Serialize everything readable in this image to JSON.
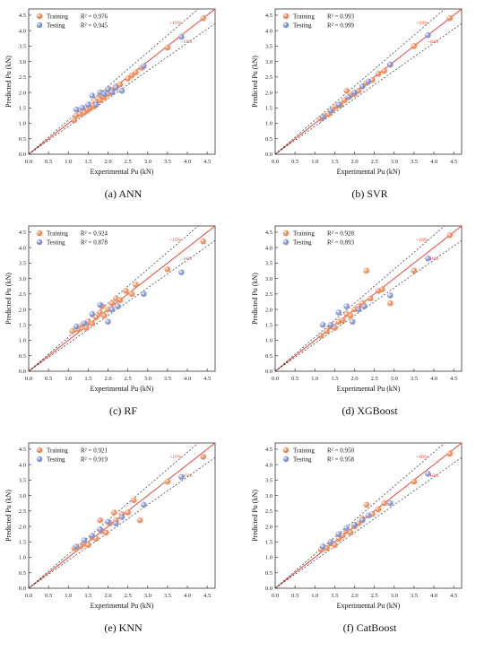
{
  "chart_data": [
    {
      "type": "scatter",
      "caption": "(a) ANN",
      "xlabel": "Experimental Pu (kN)",
      "ylabel": "Predicted Pu (kN)",
      "xlim": [
        0,
        4.7
      ],
      "ylim": [
        0,
        4.7
      ],
      "ticks": [
        0.0,
        0.5,
        1.0,
        1.5,
        2.0,
        2.5,
        3.0,
        3.5,
        4.0,
        4.5
      ],
      "legend": "top-left",
      "band_labels": [
        "+10%",
        "-10%"
      ],
      "series": [
        {
          "name": "Training",
          "r2_label": "R² = 0.976",
          "color": "#f0844f",
          "points": [
            [
              1.15,
              1.1
            ],
            [
              1.2,
              1.25
            ],
            [
              1.3,
              1.3
            ],
            [
              1.35,
              1.4
            ],
            [
              1.4,
              1.35
            ],
            [
              1.45,
              1.5
            ],
            [
              1.5,
              1.45
            ],
            [
              1.55,
              1.5
            ],
            [
              1.6,
              1.6
            ],
            [
              1.65,
              1.55
            ],
            [
              1.7,
              1.7
            ],
            [
              1.75,
              1.8
            ],
            [
              1.8,
              1.75
            ],
            [
              1.85,
              1.9
            ],
            [
              1.9,
              1.85
            ],
            [
              1.95,
              2.0
            ],
            [
              2.0,
              1.95
            ],
            [
              2.05,
              2.1
            ],
            [
              2.1,
              2.05
            ],
            [
              2.2,
              2.2
            ],
            [
              2.3,
              2.25
            ],
            [
              2.5,
              2.45
            ],
            [
              2.6,
              2.55
            ],
            [
              2.7,
              2.65
            ],
            [
              2.85,
              2.8
            ],
            [
              3.5,
              3.45
            ],
            [
              4.4,
              4.4
            ]
          ]
        },
        {
          "name": "Testing",
          "r2_label": "R² = 0.945",
          "color": "#7c8fd0",
          "points": [
            [
              1.2,
              1.45
            ],
            [
              1.35,
              1.5
            ],
            [
              1.5,
              1.6
            ],
            [
              1.6,
              1.9
            ],
            [
              1.7,
              1.6
            ],
            [
              1.8,
              2.0
            ],
            [
              1.9,
              1.95
            ],
            [
              2.0,
              2.1
            ],
            [
              2.1,
              2.0
            ],
            [
              2.2,
              2.15
            ],
            [
              2.35,
              2.05
            ],
            [
              2.9,
              2.85
            ],
            [
              3.85,
              3.8
            ]
          ]
        }
      ]
    },
    {
      "type": "scatter",
      "caption": "(b) SVR",
      "xlabel": "Experimental Pu (kN)",
      "ylabel": "Predicted Pu (kN)",
      "xlim": [
        0,
        4.7
      ],
      "ylim": [
        0,
        4.7
      ],
      "ticks": [
        0.0,
        0.5,
        1.0,
        1.5,
        2.0,
        2.5,
        3.0,
        3.5,
        4.0,
        4.5
      ],
      "legend": "top-left",
      "band_labels": [
        "+10%",
        "-10%"
      ],
      "series": [
        {
          "name": "Training",
          "r2_label": "R² = 0.993",
          "color": "#f0844f",
          "points": [
            [
              1.15,
              1.15
            ],
            [
              1.25,
              1.25
            ],
            [
              1.35,
              1.3
            ],
            [
              1.45,
              1.45
            ],
            [
              1.55,
              1.55
            ],
            [
              1.65,
              1.6
            ],
            [
              1.75,
              1.75
            ],
            [
              1.8,
              2.05
            ],
            [
              1.9,
              1.9
            ],
            [
              2.0,
              1.95
            ],
            [
              2.1,
              2.05
            ],
            [
              2.2,
              2.2
            ],
            [
              2.3,
              2.3
            ],
            [
              2.45,
              2.4
            ],
            [
              2.6,
              2.6
            ],
            [
              2.75,
              2.7
            ],
            [
              2.9,
              2.9
            ],
            [
              3.5,
              3.5
            ],
            [
              4.4,
              4.4
            ]
          ]
        },
        {
          "name": "Testing",
          "r2_label": "R² = 0.999",
          "color": "#7c8fd0",
          "points": [
            [
              1.2,
              1.2
            ],
            [
              1.4,
              1.4
            ],
            [
              1.6,
              1.6
            ],
            [
              1.85,
              1.85
            ],
            [
              2.0,
              2.0
            ],
            [
              2.2,
              2.2
            ],
            [
              2.35,
              2.35
            ],
            [
              2.9,
              2.9
            ],
            [
              3.85,
              3.85
            ]
          ]
        }
      ]
    },
    {
      "type": "scatter",
      "caption": "(c) RF",
      "xlabel": "Experimental Pu (kN)",
      "ylabel": "Predicted Pu (kN)",
      "xlim": [
        0,
        4.7
      ],
      "ylim": [
        0,
        4.7
      ],
      "ticks": [
        0.0,
        0.5,
        1.0,
        1.5,
        2.0,
        2.5,
        3.0,
        3.5,
        4.0,
        4.5
      ],
      "legend": "top-left",
      "band_labels": [
        "+10%",
        "-10%"
      ],
      "series": [
        {
          "name": "Training",
          "r2_label": "R² = 0.924",
          "color": "#f0844f",
          "points": [
            [
              1.1,
              1.3
            ],
            [
              1.25,
              1.35
            ],
            [
              1.35,
              1.5
            ],
            [
              1.45,
              1.4
            ],
            [
              1.5,
              1.6
            ],
            [
              1.6,
              1.55
            ],
            [
              1.7,
              1.75
            ],
            [
              1.8,
              1.9
            ],
            [
              1.85,
              2.1
            ],
            [
              1.9,
              1.8
            ],
            [
              2.0,
              2.0
            ],
            [
              2.1,
              2.2
            ],
            [
              2.2,
              2.35
            ],
            [
              2.3,
              2.3
            ],
            [
              2.45,
              2.6
            ],
            [
              2.6,
              2.5
            ],
            [
              2.7,
              2.8
            ],
            [
              3.5,
              3.3
            ],
            [
              4.4,
              4.2
            ]
          ]
        },
        {
          "name": "Testing",
          "r2_label": "R² = 0.878",
          "color": "#7c8fd0",
          "points": [
            [
              1.2,
              1.45
            ],
            [
              1.4,
              1.55
            ],
            [
              1.6,
              1.85
            ],
            [
              1.8,
              2.15
            ],
            [
              2.0,
              1.6
            ],
            [
              2.1,
              2.0
            ],
            [
              2.25,
              2.1
            ],
            [
              2.9,
              2.5
            ],
            [
              3.85,
              3.2
            ]
          ]
        }
      ]
    },
    {
      "type": "scatter",
      "caption": "(d) XGBoost",
      "xlabel": "Experimental Pu (kN)",
      "ylabel": "Predicted Pu (kN)",
      "xlim": [
        0,
        4.7
      ],
      "ylim": [
        0,
        4.7
      ],
      "ticks": [
        0.0,
        0.5,
        1.0,
        1.5,
        2.0,
        2.5,
        3.0,
        3.5,
        4.0,
        4.5
      ],
      "legend": "top-left",
      "band_labels": [
        "+10%",
        "-10%"
      ],
      "series": [
        {
          "name": "Training",
          "r2_label": "R² = 0.928",
          "color": "#f0844f",
          "points": [
            [
              1.15,
              1.15
            ],
            [
              1.3,
              1.3
            ],
            [
              1.4,
              1.45
            ],
            [
              1.5,
              1.4
            ],
            [
              1.6,
              1.6
            ],
            [
              1.7,
              1.65
            ],
            [
              1.8,
              1.85
            ],
            [
              1.9,
              1.8
            ],
            [
              2.0,
              2.0
            ],
            [
              2.1,
              2.1
            ],
            [
              2.2,
              2.2
            ],
            [
              2.3,
              3.25
            ],
            [
              2.4,
              2.35
            ],
            [
              2.6,
              2.6
            ],
            [
              2.7,
              2.65
            ],
            [
              2.9,
              2.2
            ],
            [
              3.5,
              3.25
            ],
            [
              4.4,
              4.4
            ]
          ]
        },
        {
          "name": "Testing",
          "r2_label": "R² = 0.893",
          "color": "#7c8fd0",
          "points": [
            [
              1.2,
              1.5
            ],
            [
              1.4,
              1.5
            ],
            [
              1.6,
              1.9
            ],
            [
              1.8,
              2.1
            ],
            [
              1.95,
              1.6
            ],
            [
              2.1,
              2.0
            ],
            [
              2.25,
              2.1
            ],
            [
              2.9,
              2.45
            ],
            [
              3.85,
              3.65
            ]
          ]
        }
      ]
    },
    {
      "type": "scatter",
      "caption": "(e) KNN",
      "xlabel": "Experimental Pu (kN)",
      "ylabel": "Predicted Pu (kN)",
      "xlim": [
        0,
        4.7
      ],
      "ylim": [
        0,
        4.7
      ],
      "ticks": [
        0.0,
        0.5,
        1.0,
        1.5,
        2.0,
        2.5,
        3.0,
        3.5,
        4.0,
        4.5
      ],
      "legend": "top-left",
      "band_labels": [
        "+10%",
        "-10%"
      ],
      "series": [
        {
          "name": "Training",
          "r2_label": "R² = 0.921",
          "color": "#f0844f",
          "points": [
            [
              1.15,
              1.3
            ],
            [
              1.3,
              1.35
            ],
            [
              1.4,
              1.45
            ],
            [
              1.5,
              1.4
            ],
            [
              1.6,
              1.65
            ],
            [
              1.7,
              1.6
            ],
            [
              1.8,
              2.2
            ],
            [
              1.85,
              1.85
            ],
            [
              1.95,
              1.8
            ],
            [
              2.05,
              2.1
            ],
            [
              2.15,
              2.45
            ],
            [
              2.2,
              2.2
            ],
            [
              2.35,
              2.4
            ],
            [
              2.5,
              2.45
            ],
            [
              2.65,
              2.85
            ],
            [
              2.8,
              2.2
            ],
            [
              3.5,
              3.45
            ],
            [
              4.4,
              4.25
            ]
          ]
        },
        {
          "name": "Testing",
          "r2_label": "R² = 0.919",
          "color": "#7c8fd0",
          "points": [
            [
              1.2,
              1.35
            ],
            [
              1.4,
              1.55
            ],
            [
              1.6,
              1.7
            ],
            [
              1.8,
              1.9
            ],
            [
              2.0,
              2.15
            ],
            [
              2.2,
              2.1
            ],
            [
              2.35,
              2.3
            ],
            [
              2.9,
              2.7
            ],
            [
              3.85,
              3.6
            ]
          ]
        }
      ]
    },
    {
      "type": "scatter",
      "caption": "(f) CatBoost",
      "xlabel": "Experimental Pu (kN)",
      "ylabel": "Predicted Pu (kN)",
      "xlim": [
        0,
        4.7
      ],
      "ylim": [
        0,
        4.7
      ],
      "ticks": [
        0.0,
        0.5,
        1.0,
        1.5,
        2.0,
        2.5,
        3.0,
        3.5,
        4.0,
        4.5
      ],
      "legend": "top-left",
      "band_labels": [
        "+10%",
        "-10%"
      ],
      "series": [
        {
          "name": "Training",
          "r2_label": "R² = 0.950",
          "color": "#f0844f",
          "points": [
            [
              1.15,
              1.25
            ],
            [
              1.3,
              1.3
            ],
            [
              1.4,
              1.45
            ],
            [
              1.5,
              1.4
            ],
            [
              1.6,
              1.6
            ],
            [
              1.7,
              1.7
            ],
            [
              1.8,
              1.85
            ],
            [
              1.9,
              1.8
            ],
            [
              2.0,
              2.0
            ],
            [
              2.1,
              2.1
            ],
            [
              2.2,
              2.25
            ],
            [
              2.3,
              2.7
            ],
            [
              2.45,
              2.4
            ],
            [
              2.6,
              2.55
            ],
            [
              2.75,
              2.75
            ],
            [
              3.5,
              3.45
            ],
            [
              4.4,
              4.35
            ]
          ]
        },
        {
          "name": "Testing",
          "r2_label": "R² = 0.958",
          "color": "#7c8fd0",
          "points": [
            [
              1.2,
              1.35
            ],
            [
              1.4,
              1.5
            ],
            [
              1.6,
              1.75
            ],
            [
              1.8,
              1.95
            ],
            [
              2.0,
              2.05
            ],
            [
              2.2,
              2.2
            ],
            [
              2.35,
              2.35
            ],
            [
              2.9,
              2.75
            ],
            [
              3.85,
              3.7
            ]
          ]
        }
      ]
    }
  ]
}
